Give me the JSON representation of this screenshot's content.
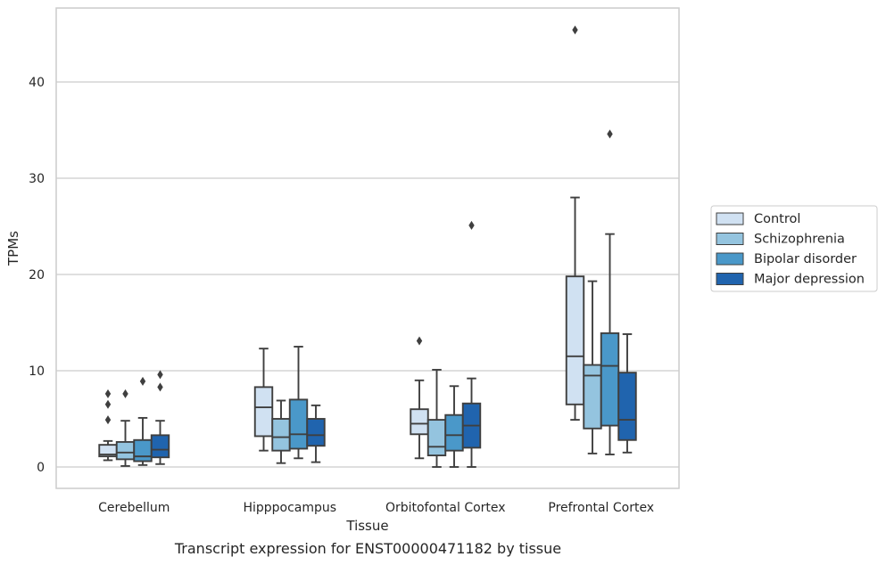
{
  "chart_data": {
    "type": "box",
    "title": "Transcript expression for ENST00000471182 by tissue",
    "xlabel": "Tissue",
    "ylabel": "TPMs",
    "ylim": [
      -2.2,
      47.7
    ],
    "yticks": [
      0,
      10,
      20,
      30,
      40
    ],
    "grid": "horizontal",
    "legend_position": "right",
    "categories": [
      "Cerebellum",
      "Hipppocampus",
      "Orbitofontal Cortex",
      "Prefrontal Cortex"
    ],
    "series": [
      {
        "name": "Control",
        "color": "#d0e1f2",
        "boxes": [
          {
            "whislo": 0.7,
            "q1": 1.1,
            "med": 1.3,
            "q3": 2.3,
            "whishi": 2.7,
            "fliers": [
              4.9,
              6.5,
              7.6
            ]
          },
          {
            "whislo": 1.7,
            "q1": 3.2,
            "med": 6.2,
            "q3": 8.3,
            "whishi": 12.3,
            "fliers": []
          },
          {
            "whislo": 0.9,
            "q1": 3.4,
            "med": 4.5,
            "q3": 6.0,
            "whishi": 9.0,
            "fliers": [
              13.1
            ]
          },
          {
            "whislo": 4.9,
            "q1": 6.5,
            "med": 11.5,
            "q3": 19.8,
            "whishi": 28.0,
            "fliers": [
              45.4
            ]
          }
        ]
      },
      {
        "name": "Schizophrenia",
        "color": "#94c4df",
        "boxes": [
          {
            "whislo": 0.1,
            "q1": 0.8,
            "med": 1.5,
            "q3": 2.6,
            "whishi": 4.8,
            "fliers": [
              7.6
            ]
          },
          {
            "whislo": 0.4,
            "q1": 1.7,
            "med": 3.1,
            "q3": 5.0,
            "whishi": 6.9,
            "fliers": []
          },
          {
            "whislo": 0.0,
            "q1": 1.2,
            "med": 2.1,
            "q3": 4.9,
            "whishi": 10.1,
            "fliers": []
          },
          {
            "whislo": 1.4,
            "q1": 4.0,
            "med": 9.5,
            "q3": 10.6,
            "whishi": 19.3,
            "fliers": []
          }
        ]
      },
      {
        "name": "Bipolar disorder",
        "color": "#4a98c9",
        "boxes": [
          {
            "whislo": 0.2,
            "q1": 0.6,
            "med": 1.1,
            "q3": 2.8,
            "whishi": 5.1,
            "fliers": [
              8.9
            ]
          },
          {
            "whislo": 0.9,
            "q1": 1.9,
            "med": 3.4,
            "q3": 7.0,
            "whishi": 12.5,
            "fliers": []
          },
          {
            "whislo": 0.0,
            "q1": 1.7,
            "med": 3.3,
            "q3": 5.4,
            "whishi": 8.4,
            "fliers": []
          },
          {
            "whislo": 1.3,
            "q1": 4.3,
            "med": 10.5,
            "q3": 13.9,
            "whishi": 24.2,
            "fliers": [
              34.6
            ]
          }
        ]
      },
      {
        "name": "Major depression",
        "color": "#2064ae",
        "boxes": [
          {
            "whislo": 0.3,
            "q1": 1.0,
            "med": 1.8,
            "q3": 3.3,
            "whishi": 4.8,
            "fliers": [
              8.3,
              9.6
            ]
          },
          {
            "whislo": 0.5,
            "q1": 2.2,
            "med": 3.3,
            "q3": 5.0,
            "whishi": 6.4,
            "fliers": []
          },
          {
            "whislo": 0.0,
            "q1": 2.0,
            "med": 4.3,
            "q3": 6.6,
            "whishi": 9.2,
            "fliers": [
              25.1
            ]
          },
          {
            "whislo": 1.5,
            "q1": 2.8,
            "med": 4.9,
            "q3": 9.8,
            "whishi": 13.8,
            "fliers": []
          }
        ]
      }
    ]
  }
}
